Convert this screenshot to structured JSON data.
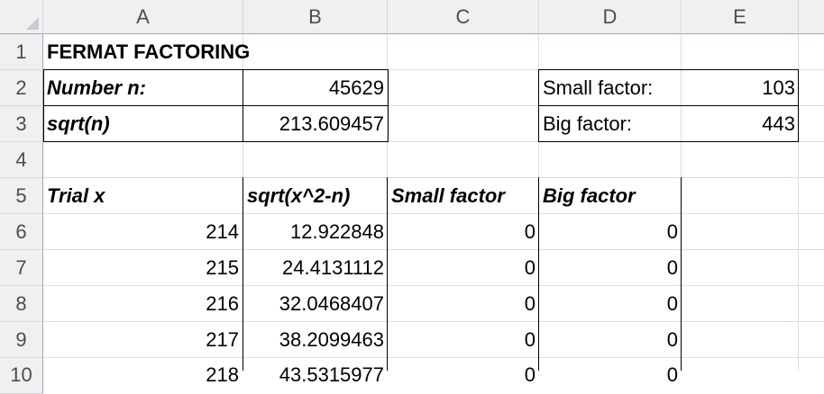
{
  "columns": [
    "A",
    "B",
    "C",
    "D",
    "E"
  ],
  "rows": [
    "1",
    "2",
    "3",
    "4",
    "5",
    "6",
    "7",
    "8",
    "9",
    "10"
  ],
  "title": "FERMAT FACTORING",
  "inputs": {
    "number_label": "Number n:",
    "number_value": "45629",
    "sqrt_label": "sqrt(n)",
    "sqrt_value": "213.609457"
  },
  "results": {
    "small_label": "Small factor:",
    "small_value": "103",
    "big_label": "Big factor:",
    "big_value": "443"
  },
  "table": {
    "headers": [
      "Trial x",
      "sqrt(x^2-n)",
      "Small factor",
      "Big factor"
    ],
    "rows": [
      [
        "214",
        "12.922848",
        "0",
        "0"
      ],
      [
        "215",
        "24.4131112",
        "0",
        "0"
      ],
      [
        "216",
        "32.0468407",
        "0",
        "0"
      ],
      [
        "217",
        "38.2099463",
        "0",
        "0"
      ],
      [
        "218",
        "43.5315977",
        "0",
        "0"
      ]
    ]
  }
}
